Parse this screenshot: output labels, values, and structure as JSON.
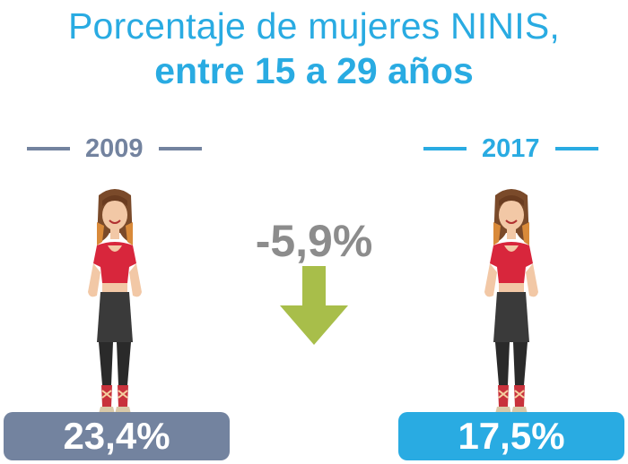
{
  "title": {
    "line1": "Porcentaje de mujeres NINIS,",
    "line2": "entre 15 a 29 años"
  },
  "change_label": "-5,9%",
  "colors": {
    "left": "#73839f",
    "right": "#29abe2",
    "arrow": "#a8be4a",
    "change": "#8c8c8c"
  },
  "icons": {
    "person": "woman-figure-icon",
    "arrow": "down-arrow-icon"
  },
  "chart_data": {
    "type": "bar",
    "categories": [
      "2009",
      "2017"
    ],
    "values": [
      23.4,
      17.5
    ],
    "value_labels": [
      "23,4%",
      "17,5%"
    ],
    "change": -5.9,
    "title": "Porcentaje de mujeres NINIS, entre 15 a 29 años",
    "ylabel": ""
  }
}
